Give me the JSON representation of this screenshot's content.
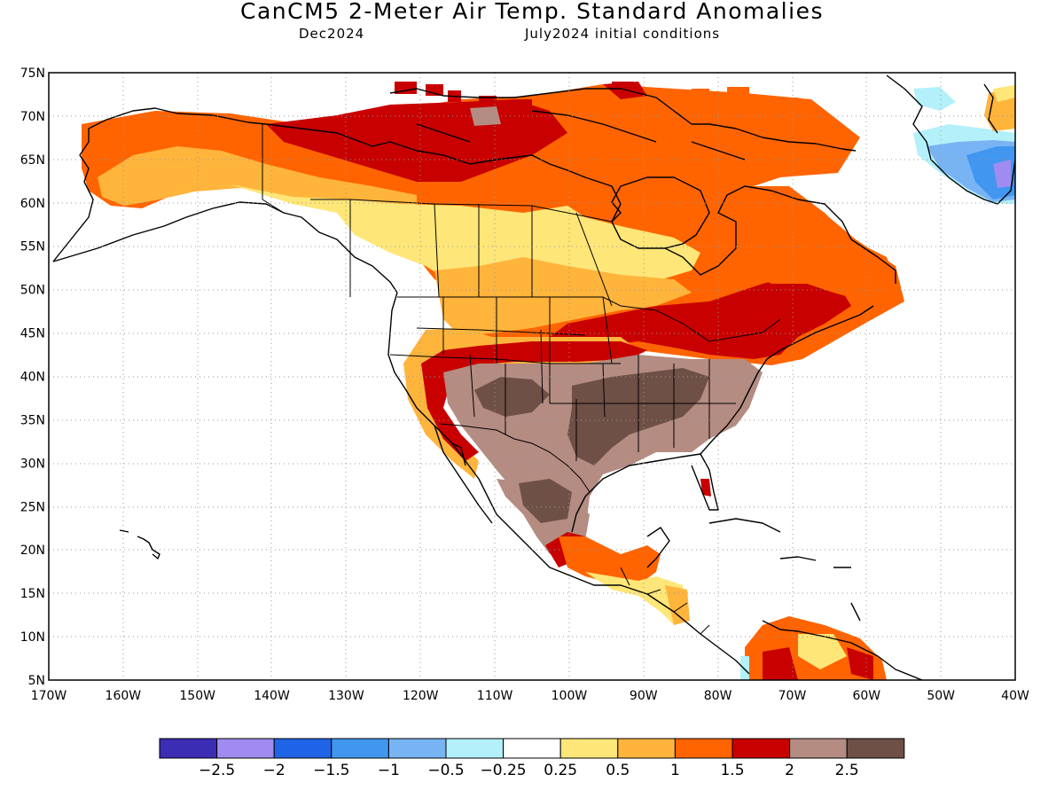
{
  "title": "CanCM5 2-Meter Air Temp. Standard Anomalies",
  "subtitle_left": "Dec2024",
  "subtitle_right": "July2024 initial conditions",
  "map": {
    "lon_range": [
      -170,
      -40
    ],
    "lat_range": [
      5,
      75
    ],
    "lat_labels": [
      "75N",
      "70N",
      "65N",
      "60N",
      "55N",
      "50N",
      "45N",
      "40N",
      "35N",
      "30N",
      "25N",
      "20N",
      "15N",
      "10N",
      "5N"
    ],
    "lon_labels": [
      "170W",
      "160W",
      "150W",
      "140W",
      "130W",
      "120W",
      "110W",
      "100W",
      "90W",
      "80W",
      "70W",
      "60W",
      "50W",
      "40W"
    ],
    "grid": true,
    "background": "#ffffff"
  },
  "legend": {
    "colors": [
      "#3b2db4",
      "#a08cf0",
      "#1f64e6",
      "#4196f0",
      "#78b4f4",
      "#b4f0fa",
      "#ffffff",
      "#ffe678",
      "#ffb43c",
      "#ff6400",
      "#c80000",
      "#b48c82",
      "#6e5046"
    ],
    "labels": [
      "−2.5",
      "−2",
      "−1.5",
      "−1",
      "−0.5",
      "−0.25",
      "0.25",
      "0.5",
      "1",
      "1.5",
      "2",
      "2.5"
    ]
  },
  "anomaly_regions": [
    {
      "name": "alaska-north-canada",
      "level": "1.5",
      "color": "#ff6400"
    },
    {
      "name": "canadian-arctic-coast",
      "level": "2",
      "color": "#c80000"
    },
    {
      "name": "alaska-interior",
      "level": "0.5",
      "color": "#ffb43c"
    },
    {
      "name": "canadian-prairies",
      "level": "0.25",
      "color": "#ffe678"
    },
    {
      "name": "great-lakes-northeast",
      "level": "2",
      "color": "#c80000"
    },
    {
      "name": "quebec-labrador",
      "level": "1.5",
      "color": "#ff6400"
    },
    {
      "name": "southwest-us",
      "level": "2.5",
      "color": "#b48c82"
    },
    {
      "name": "southern-plains-core",
      "level": "2.5+",
      "color": "#6e5046"
    },
    {
      "name": "mexico-interior",
      "level": "2.5",
      "color": "#b48c82"
    },
    {
      "name": "central-america",
      "level": "1.5",
      "color": "#ff6400"
    },
    {
      "name": "northern-south-america",
      "level": "1.5",
      "color": "#ff6400"
    },
    {
      "name": "greenland-south",
      "level": "-1",
      "color": "#78b4f4"
    }
  ]
}
